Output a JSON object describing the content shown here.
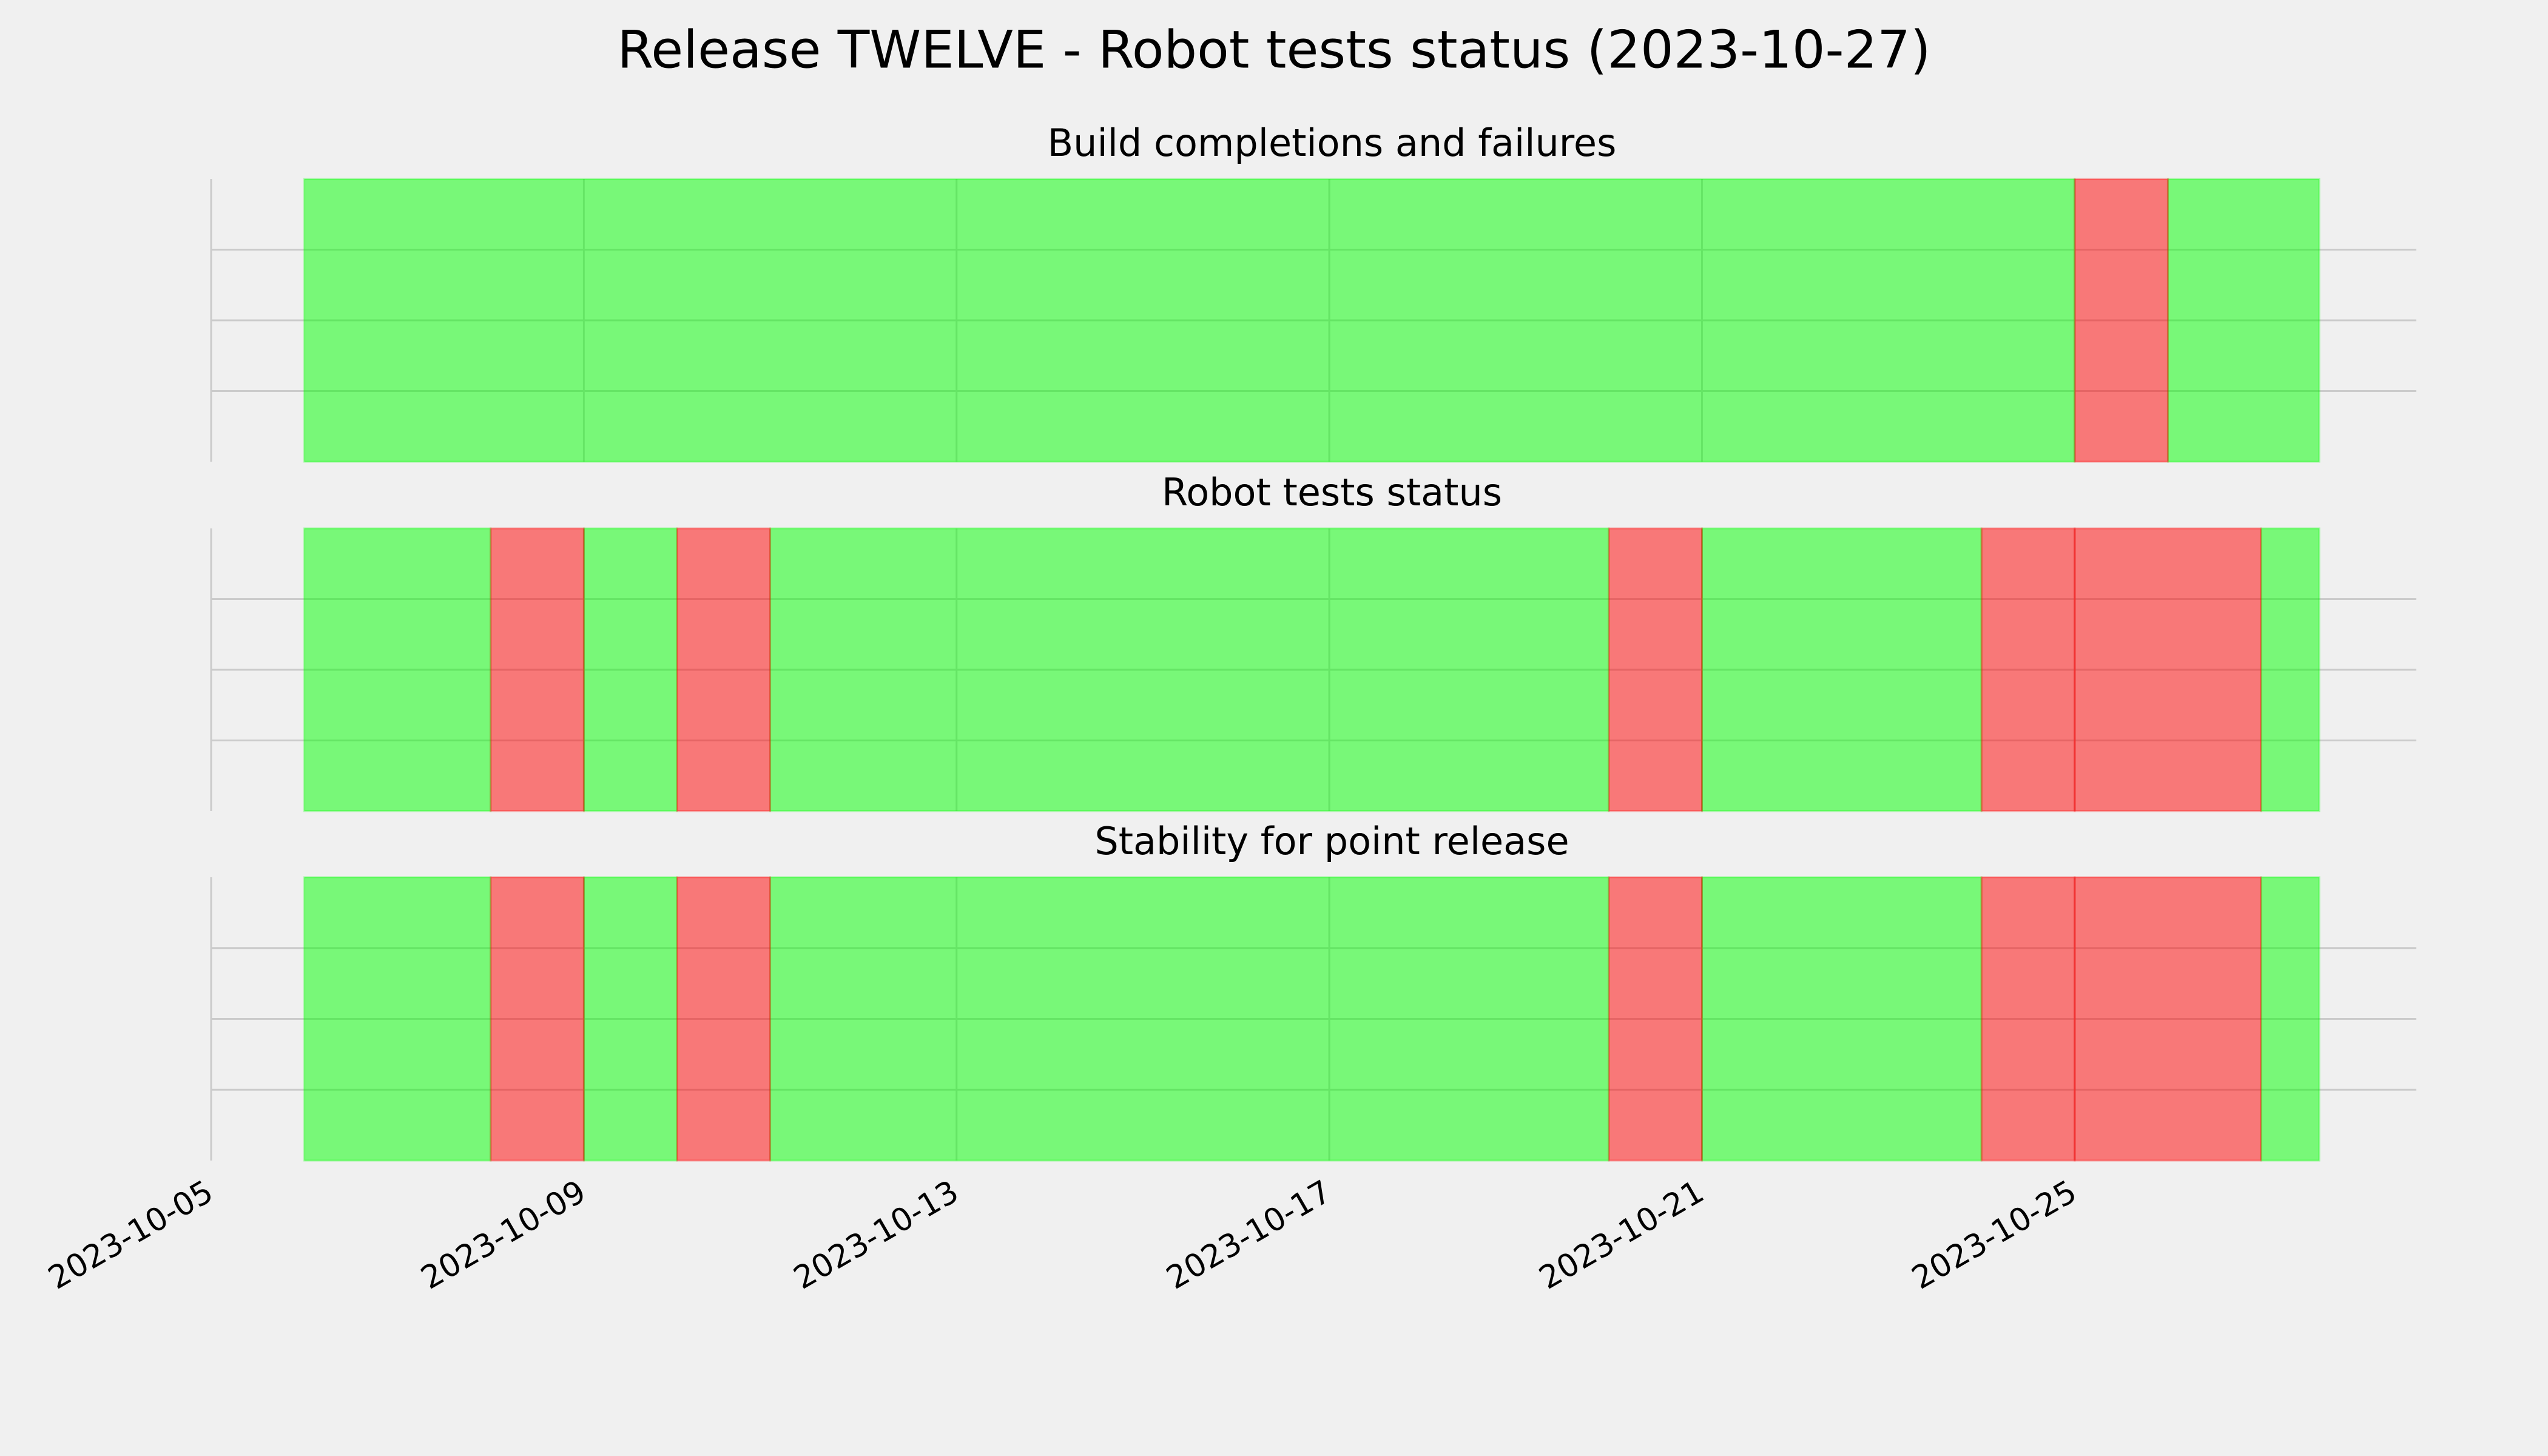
{
  "title": "Release TWELVE - Robot tests status (2023-10-27)",
  "chart_data": [
    {
      "type": "span",
      "title": "Build completions and failures",
      "xlim": [
        "2023-10-05",
        "2023-10-28 16:00"
      ],
      "xticks": [
        "2023-10-05",
        "2023-10-09",
        "2023-10-13",
        "2023-10-17",
        "2023-10-21",
        "2023-10-25"
      ],
      "ylim": [
        0,
        1
      ],
      "yticks": [
        0.25,
        0.5,
        0.75
      ],
      "grid": true,
      "alpha": 0.5,
      "series": [
        {
          "color": "#00ff00",
          "spans": [
            [
              "2023-10-06",
              "2023-10-25"
            ],
            [
              "2023-10-26",
              "2023-10-27 15:00"
            ]
          ]
        },
        {
          "color": "#ff0000",
          "spans": [
            [
              "2023-10-25",
              "2023-10-26"
            ]
          ]
        }
      ]
    },
    {
      "type": "span",
      "title": "Robot tests status",
      "xlim": [
        "2023-10-05",
        "2023-10-28 16:00"
      ],
      "xticks": [
        "2023-10-05",
        "2023-10-09",
        "2023-10-13",
        "2023-10-17",
        "2023-10-21",
        "2023-10-25"
      ],
      "ylim": [
        0,
        1
      ],
      "yticks": [
        0.25,
        0.5,
        0.75
      ],
      "grid": true,
      "alpha": 0.5,
      "series": [
        {
          "color": "#00ff00",
          "spans": [
            [
              "2023-10-06",
              "2023-10-08"
            ],
            [
              "2023-10-09",
              "2023-10-10"
            ],
            [
              "2023-10-11",
              "2023-10-20"
            ],
            [
              "2023-10-21",
              "2023-10-24"
            ],
            [
              "2023-10-27",
              "2023-10-27 15:00"
            ]
          ]
        },
        {
          "color": "#ff0000",
          "spans": [
            [
              "2023-10-08",
              "2023-10-09"
            ],
            [
              "2023-10-10",
              "2023-10-11"
            ],
            [
              "2023-10-20",
              "2023-10-21"
            ],
            [
              "2023-10-24",
              "2023-10-25"
            ],
            [
              "2023-10-25",
              "2023-10-27"
            ]
          ]
        }
      ]
    },
    {
      "type": "span",
      "title": "Stability for point release",
      "xlim": [
        "2023-10-05",
        "2023-10-28 16:00"
      ],
      "xticks": [
        "2023-10-05",
        "2023-10-09",
        "2023-10-13",
        "2023-10-17",
        "2023-10-21",
        "2023-10-25"
      ],
      "ylim": [
        0,
        1
      ],
      "yticks": [
        0.25,
        0.5,
        0.75
      ],
      "grid": true,
      "alpha": 0.5,
      "series": [
        {
          "color": "#00ff00",
          "spans": [
            [
              "2023-10-06",
              "2023-10-08"
            ],
            [
              "2023-10-09",
              "2023-10-10"
            ],
            [
              "2023-10-11",
              "2023-10-20"
            ],
            [
              "2023-10-21",
              "2023-10-24"
            ],
            [
              "2023-10-27",
              "2023-10-27 15:00"
            ]
          ]
        },
        {
          "color": "#ff0000",
          "spans": [
            [
              "2023-10-08",
              "2023-10-09"
            ],
            [
              "2023-10-10",
              "2023-10-11"
            ],
            [
              "2023-10-20",
              "2023-10-21"
            ],
            [
              "2023-10-24",
              "2023-10-25"
            ],
            [
              "2023-10-25",
              "2023-10-27"
            ]
          ]
        }
      ]
    }
  ]
}
